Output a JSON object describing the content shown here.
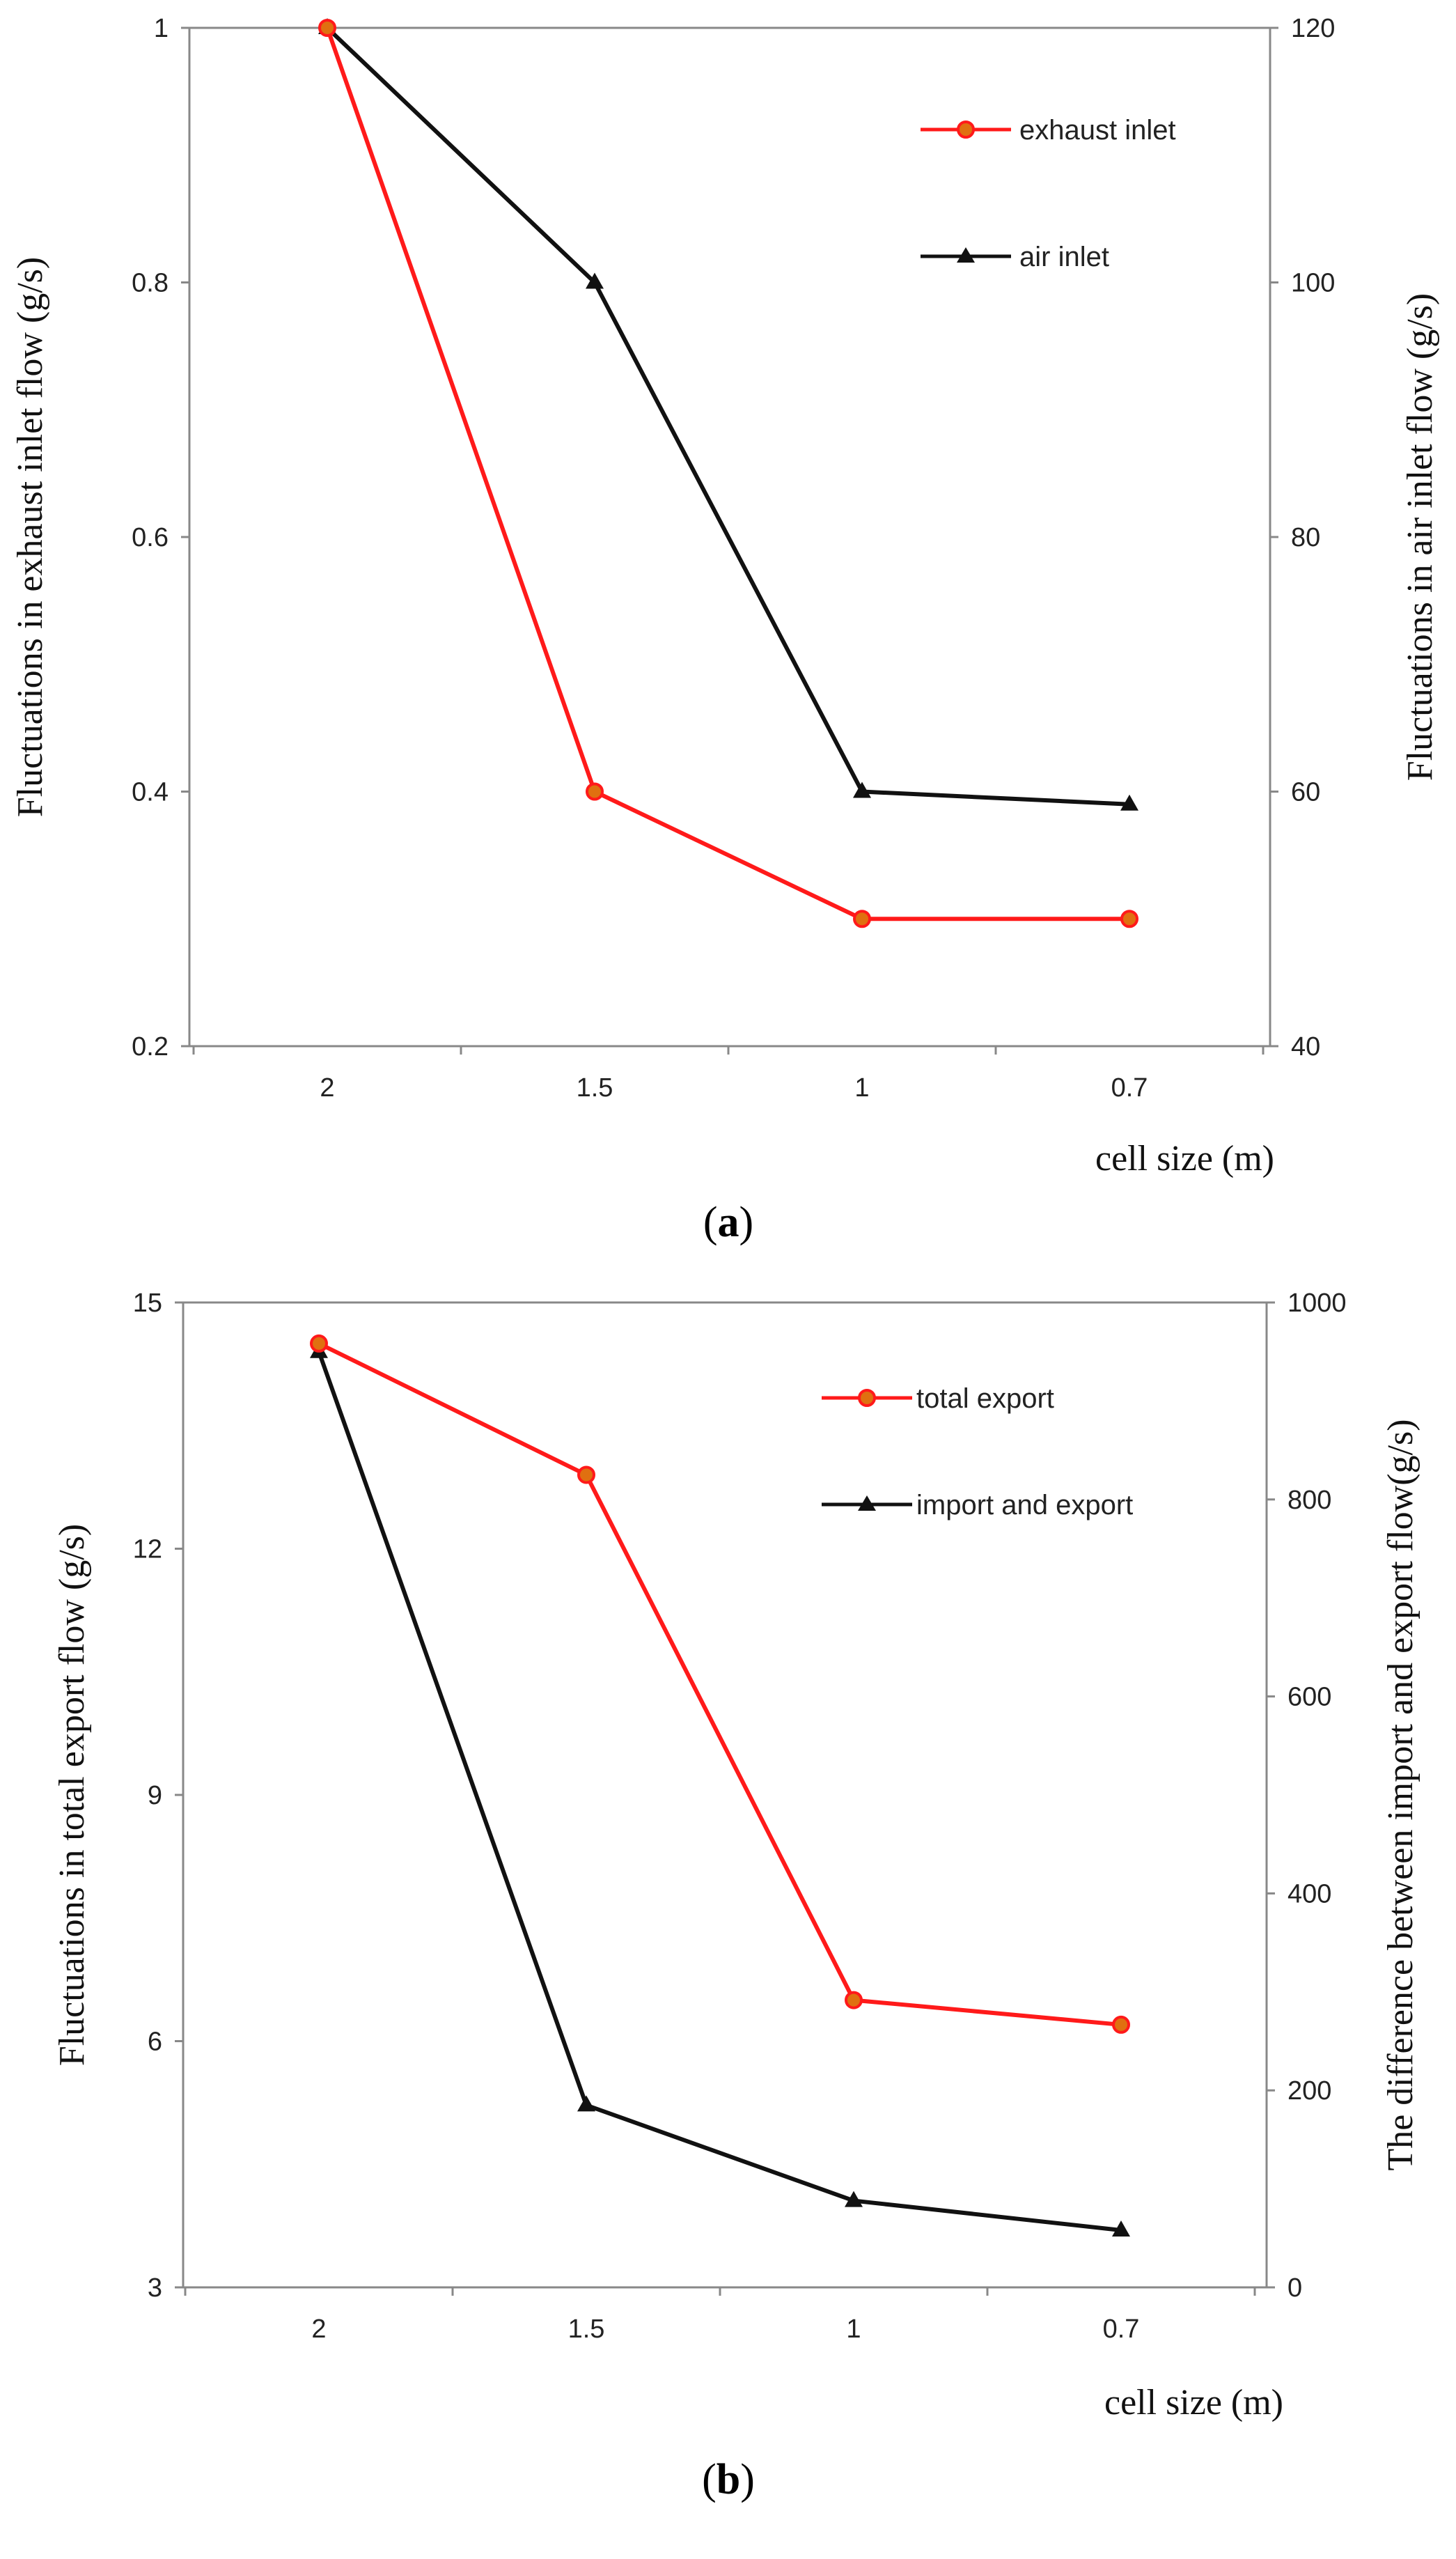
{
  "chart_data": [
    {
      "type": "line",
      "panel_label": "a",
      "categories": [
        "2",
        "1.5",
        "1",
        "0.7"
      ],
      "xlabel": "cell size (m)",
      "ylabel_left": "Fluctuations in exhaust inlet flow (g/s)",
      "ylabel_right": "Fluctuations in air inlet flow (g/s)",
      "ylim_left": [
        0.2,
        1
      ],
      "ylim_right": [
        40,
        120
      ],
      "yticks_left": [
        "0.2",
        "0.4",
        "0.6",
        "0.8",
        "1"
      ],
      "yticks_right": [
        "40",
        "60",
        "80",
        "100",
        "120"
      ],
      "legend_position": "top-right",
      "series": [
        {
          "name": "exhaust inlet",
          "axis": "left",
          "color": "#ff1a1a",
          "marker": "circle",
          "marker_fill": "#e07010",
          "values": [
            1.0,
            0.4,
            0.3,
            0.3
          ]
        },
        {
          "name": "air inlet",
          "axis": "right",
          "color": "#111111",
          "marker": "triangle",
          "marker_fill": "#111111",
          "values": [
            120,
            100,
            60,
            59
          ]
        }
      ]
    },
    {
      "type": "line",
      "panel_label": "b",
      "categories": [
        "2",
        "1.5",
        "1",
        "0.7"
      ],
      "xlabel": "cell size (m)",
      "ylabel_left": "Fluctuations in total export flow (g/s)",
      "ylabel_right": "The difference between import and export flow(g/s)",
      "ylim_left": [
        3,
        15
      ],
      "ylim_right": [
        0,
        1000
      ],
      "yticks_left": [
        "3",
        "6",
        "9",
        "12",
        "15"
      ],
      "yticks_right": [
        "0",
        "200",
        "400",
        "600",
        "800",
        "1000"
      ],
      "legend_position": "top-right",
      "series": [
        {
          "name": "total export",
          "axis": "left",
          "color": "#ff1a1a",
          "marker": "circle",
          "marker_fill": "#e07010",
          "values": [
            14.5,
            12.9,
            6.5,
            6.2
          ]
        },
        {
          "name": "import and export",
          "axis": "right",
          "color": "#111111",
          "marker": "triangle",
          "marker_fill": "#111111",
          "values": [
            950,
            185,
            88,
            58
          ]
        }
      ]
    }
  ]
}
